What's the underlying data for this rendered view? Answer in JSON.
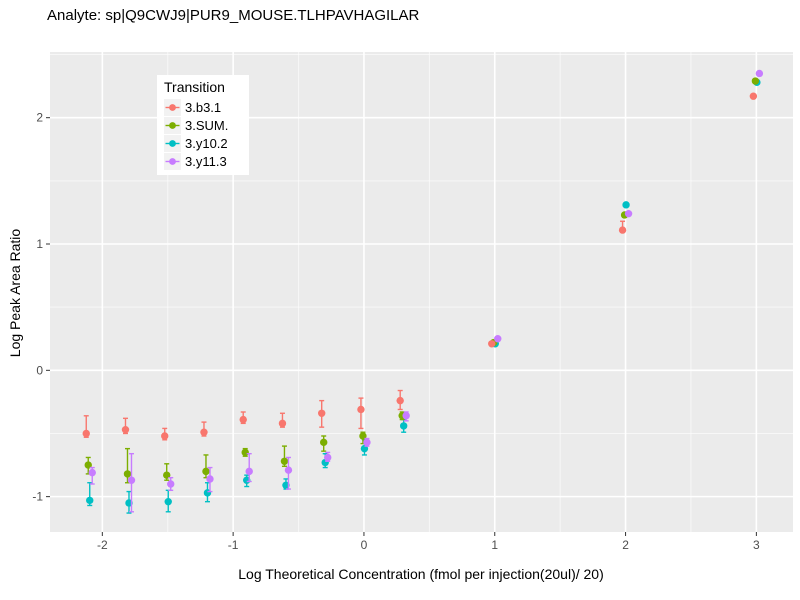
{
  "chart_data": {
    "type": "scatter",
    "title": "Analyte: sp|Q9CWJ9|PUR9_MOUSE.TLHPAVHAGILAR",
    "xlabel": "Log Theoretical Concentration (fmol per injection(20ul)/ 20)",
    "ylabel": "Log Peak Area Ratio",
    "xlim": [
      -2.4,
      3.28
    ],
    "ylim": [
      -1.28,
      2.52
    ],
    "x_ticks": [
      -2,
      -1,
      0,
      1,
      2,
      3
    ],
    "y_ticks": [
      -1,
      0,
      1,
      2
    ],
    "x_minor": [
      -1.5,
      -0.5,
      0.5,
      1.5,
      2.5
    ],
    "y_minor": [
      -0.5,
      0.5,
      1.5,
      2.5
    ],
    "grid": "major-and-minor",
    "legend": {
      "title": "Transition",
      "position": "inside-top-left"
    },
    "point_style": "point-with-errorbar",
    "series": [
      {
        "name": "3.b3.1",
        "color": "#F8766D",
        "points": [
          [
            -2.1,
            -0.5,
            -0.53,
            -0.36
          ],
          [
            -1.8,
            -0.47,
            -0.5,
            -0.38
          ],
          [
            -1.5,
            -0.52,
            -0.55,
            -0.46
          ],
          [
            -1.2,
            -0.49,
            -0.52,
            -0.41
          ],
          [
            -0.9,
            -0.39,
            -0.42,
            -0.33
          ],
          [
            -0.6,
            -0.42,
            -0.45,
            -0.34
          ],
          [
            -0.3,
            -0.34,
            -0.45,
            -0.24
          ],
          [
            0,
            -0.31,
            -0.46,
            -0.22
          ],
          [
            0.3,
            -0.24,
            -0.31,
            -0.16
          ],
          [
            1,
            0.21,
            0.21,
            0.21
          ],
          [
            2,
            1.11,
            1.1,
            1.18
          ],
          [
            3,
            2.17,
            2.17,
            2.17
          ]
        ]
      },
      {
        "name": "3.SUM.",
        "color": "#7CAE00",
        "points": [
          [
            -2.1,
            -0.75,
            -0.82,
            -0.69
          ],
          [
            -1.8,
            -0.82,
            -0.89,
            -0.62
          ],
          [
            -1.5,
            -0.83,
            -0.87,
            -0.74
          ],
          [
            -1.2,
            -0.8,
            -0.85,
            -0.67
          ],
          [
            -0.9,
            -0.65,
            -0.68,
            -0.62
          ],
          [
            -0.6,
            -0.72,
            -0.76,
            -0.6
          ],
          [
            -0.3,
            -0.57,
            -0.64,
            -0.52
          ],
          [
            0,
            -0.52,
            -0.58,
            -0.49
          ],
          [
            0.3,
            -0.36,
            -0.39,
            -0.33
          ],
          [
            1,
            0.22,
            0.22,
            0.22
          ],
          [
            2,
            1.23,
            1.23,
            1.23
          ],
          [
            3,
            2.29,
            2.29,
            2.29
          ]
        ]
      },
      {
        "name": "3.y10.2",
        "color": "#00BFC4",
        "points": [
          [
            -2.1,
            -1.03,
            -1.07,
            -0.89
          ],
          [
            -1.8,
            -1.05,
            -1.13,
            -0.96
          ],
          [
            -1.5,
            -1.04,
            -1.12,
            -0.95
          ],
          [
            -1.2,
            -0.97,
            -1.04,
            -0.89
          ],
          [
            -0.9,
            -0.87,
            -0.92,
            -0.83
          ],
          [
            -0.6,
            -0.91,
            -0.94,
            -0.86
          ],
          [
            -0.3,
            -0.73,
            -0.77,
            -0.66
          ],
          [
            0,
            -0.62,
            -0.67,
            -0.55
          ],
          [
            0.3,
            -0.44,
            -0.49,
            -0.39
          ],
          [
            1,
            0.21,
            0.21,
            0.21
          ],
          [
            2,
            1.31,
            1.31,
            1.31
          ],
          [
            3,
            2.28,
            2.28,
            2.28
          ]
        ]
      },
      {
        "name": "3.y11.3",
        "color": "#C77CFF",
        "points": [
          [
            -2.1,
            -0.81,
            -0.9,
            -0.77
          ],
          [
            -1.8,
            -0.87,
            -1.12,
            -0.66
          ],
          [
            -1.5,
            -0.9,
            -0.95,
            -0.85
          ],
          [
            -1.2,
            -0.86,
            -0.96,
            -0.77
          ],
          [
            -0.9,
            -0.8,
            -0.88,
            -0.66
          ],
          [
            -0.6,
            -0.79,
            -0.94,
            -0.69
          ],
          [
            -0.3,
            -0.69,
            -0.72,
            -0.65
          ],
          [
            0,
            -0.57,
            -0.6,
            -0.54
          ],
          [
            0.3,
            -0.36,
            -0.4,
            -0.33
          ],
          [
            1,
            0.25,
            0.25,
            0.25
          ],
          [
            2,
            1.24,
            1.24,
            1.24
          ],
          [
            3,
            2.35,
            2.35,
            2.35
          ]
        ]
      }
    ],
    "colors": {
      "panel_bg": "#EBEBEB",
      "gridline": "#FFFFFF",
      "tick_mark": "#333333",
      "tick_label": "#4D4D4D",
      "legend_key_bg": "#F2F2F2"
    }
  }
}
